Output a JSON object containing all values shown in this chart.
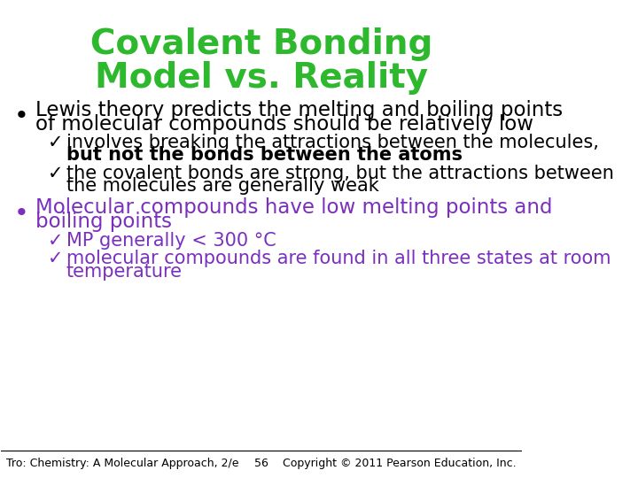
{
  "title_line1": "Covalent Bonding",
  "title_line2": "Model vs. Reality",
  "title_color": "#2db82d",
  "background_color": "#ffffff",
  "bullet1_text_line1": "Lewis theory predicts the melting and boiling points",
  "bullet1_text_line2": "of molecular compounds should be relatively low",
  "bullet1_color": "#000000",
  "sub1_line1_normal": "involves breaking the attractions between the molecules,",
  "sub1_line2_bold": "but not the bonds between the atoms",
  "sub2_line1": "the covalent bonds are strong, but the attractions between",
  "sub2_line2": "the molecules are generally weak",
  "sub_color": "#000000",
  "bullet2_line1": "Molecular compounds have low melting points and",
  "bullet2_line2": "boiling points",
  "bullet2_color": "#7b2fbe",
  "sub3_text": "MP generally < 300 °C",
  "sub3_color": "#7b2fbe",
  "sub4_line1": "molecular compounds are found in all three states at room",
  "sub4_line2": "temperature",
  "sub4_color": "#7b2fbe",
  "footer_left": "Tro: Chemistry: A Molecular Approach, 2/e",
  "footer_center": "56",
  "footer_right": "Copyright © 2011 Pearson Education, Inc.",
  "footer_color": "#000000",
  "title_fontsize": 28,
  "bullet_fontsize": 16.5,
  "sub_fontsize": 15,
  "footer_fontsize": 9
}
